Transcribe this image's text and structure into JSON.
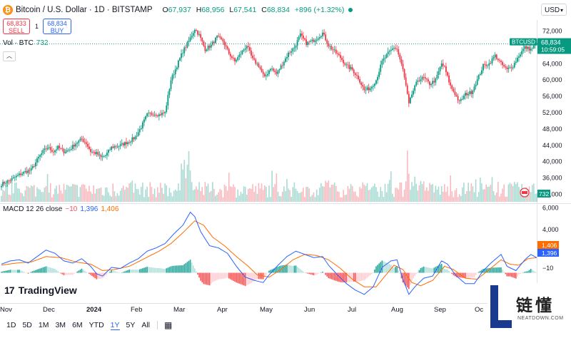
{
  "header": {
    "title": "Bitcoin / U.S. Dollar · 1D · BITSTAMP",
    "open_label": "O",
    "open": "67,937",
    "high_label": "H",
    "high": "68,956",
    "low_label": "L",
    "low": "67,541",
    "close_label": "C",
    "close": "68,834",
    "change": "+896 (+1.32%)"
  },
  "trade": {
    "sell_price": "68,833",
    "sell_label": "SELL",
    "spread": "1",
    "buy_price": "68,834",
    "buy_label": "BUY"
  },
  "volume_legend": {
    "label": "Vol · BTC",
    "value": "732"
  },
  "currency": "USD",
  "macd_legend": {
    "label": "MACD 12 26 close",
    "histogram": "−10",
    "macd": "1,396",
    "signal": "1,406"
  },
  "branding": {
    "tradingview": "TradingView",
    "logo_mark": "17"
  },
  "range_buttons": [
    "1D",
    "5D",
    "1M",
    "3M",
    "6M",
    "YTD",
    "1Y",
    "5Y",
    "All"
  ],
  "active_range": "1Y",
  "watermark": {
    "cn": "链懂",
    "en": "NEATDOWN.COM"
  },
  "colors": {
    "up": "#089981",
    "down": "#f23645",
    "macd": "#2962ff",
    "signal": "#ff6d00",
    "accent": "#2962ff"
  },
  "chart_data": {
    "type": "candlestick",
    "symbol": "BTCUSD",
    "current_price": "68,834",
    "countdown": "10:59:05",
    "price_axis": {
      "ylim": [
        30000,
        74000
      ],
      "ticks": [
        32000,
        36000,
        40000,
        44000,
        48000,
        52000,
        56000,
        60000,
        64000,
        68000,
        72000
      ]
    },
    "volume_last": "732",
    "macd_axis": {
      "ylim": [
        -2800,
        6300
      ],
      "ticks": [
        6000,
        4000
      ],
      "macd_last": "1,396",
      "signal_last": "1,406",
      "hist_last": "−10"
    },
    "x_labels": [
      "Nov",
      "Dec",
      "2024",
      "Feb",
      "Mar",
      "Apr",
      "May",
      "Jun",
      "Jul",
      "Aug",
      "Sep",
      "Oc"
    ],
    "price_path": [
      [
        0,
        34500
      ],
      [
        6,
        35500
      ],
      [
        12,
        36800
      ],
      [
        16,
        37500
      ],
      [
        20,
        38000
      ],
      [
        25,
        41000
      ],
      [
        28,
        42500
      ],
      [
        31,
        43500
      ],
      [
        35,
        42500
      ],
      [
        38,
        43500
      ],
      [
        42,
        42500
      ],
      [
        46,
        43000
      ],
      [
        50,
        44500
      ],
      [
        54,
        45500
      ],
      [
        57,
        44500
      ],
      [
        60,
        42500
      ],
      [
        64,
        42000
      ],
      [
        67,
        41000
      ],
      [
        70,
        41500
      ],
      [
        74,
        43500
      ],
      [
        80,
        44000
      ],
      [
        86,
        45000
      ],
      [
        90,
        46000
      ],
      [
        94,
        48500
      ],
      [
        98,
        51500
      ],
      [
        102,
        51800
      ],
      [
        106,
        51500
      ],
      [
        110,
        52000
      ],
      [
        114,
        60000
      ],
      [
        118,
        63500
      ],
      [
        122,
        67000
      ],
      [
        126,
        69500
      ],
      [
        130,
        72500
      ],
      [
        133,
        71000
      ],
      [
        137,
        67500
      ],
      [
        141,
        68500
      ],
      [
        145,
        70500
      ],
      [
        149,
        69500
      ],
      [
        153,
        66500
      ],
      [
        157,
        64500
      ],
      [
        161,
        66500
      ],
      [
        165,
        68500
      ],
      [
        169,
        65000
      ],
      [
        173,
        63500
      ],
      [
        177,
        60500
      ],
      [
        181,
        63000
      ],
      [
        185,
        61500
      ],
      [
        189,
        64000
      ],
      [
        193,
        66500
      ],
      [
        197,
        68000
      ],
      [
        201,
        71000
      ],
      [
        205,
        69000
      ],
      [
        209,
        69500
      ],
      [
        213,
        70500
      ],
      [
        216,
        71500
      ],
      [
        220,
        68500
      ],
      [
        224,
        67000
      ],
      [
        228,
        65500
      ],
      [
        232,
        63500
      ],
      [
        236,
        62500
      ],
      [
        240,
        60500
      ],
      [
        244,
        57500
      ],
      [
        248,
        58000
      ],
      [
        252,
        60000
      ],
      [
        256,
        64500
      ],
      [
        260,
        66500
      ],
      [
        264,
        68000
      ],
      [
        266,
        67500
      ],
      [
        268,
        65000
      ],
      [
        270,
        62500
      ],
      [
        272,
        58500
      ],
      [
        274,
        54000
      ],
      [
        276,
        56500
      ],
      [
        280,
        60000
      ],
      [
        284,
        60500
      ],
      [
        288,
        59000
      ],
      [
        292,
        60000
      ],
      [
        296,
        64000
      ],
      [
        298,
        63000
      ],
      [
        302,
        58500
      ],
      [
        306,
        56000
      ],
      [
        308,
        54500
      ],
      [
        312,
        56500
      ],
      [
        316,
        57000
      ],
      [
        320,
        60000
      ],
      [
        324,
        63500
      ],
      [
        328,
        64000
      ],
      [
        332,
        66000
      ],
      [
        336,
        64000
      ],
      [
        340,
        62500
      ],
      [
        344,
        63500
      ],
      [
        348,
        66000
      ],
      [
        352,
        68000
      ],
      [
        356,
        67500
      ],
      [
        360,
        68834
      ]
    ],
    "volume_peaks": {
      "Mar": 870,
      "Aug": 1500
    },
    "macd_path": [
      [
        0,
        800
      ],
      [
        6,
        1100
      ],
      [
        12,
        1200
      ],
      [
        18,
        900
      ],
      [
        24,
        1500
      ],
      [
        30,
        2100
      ],
      [
        36,
        1800
      ],
      [
        42,
        1100
      ],
      [
        48,
        900
      ],
      [
        54,
        1300
      ],
      [
        60,
        600
      ],
      [
        64,
        -100
      ],
      [
        68,
        -300
      ],
      [
        74,
        500
      ],
      [
        80,
        400
      ],
      [
        86,
        900
      ],
      [
        92,
        1300
      ],
      [
        98,
        2000
      ],
      [
        104,
        2300
      ],
      [
        110,
        2700
      ],
      [
        116,
        3600
      ],
      [
        122,
        4400
      ],
      [
        127,
        5600
      ],
      [
        130,
        5200
      ],
      [
        134,
        3800
      ],
      [
        140,
        2500
      ],
      [
        146,
        2300
      ],
      [
        152,
        1800
      ],
      [
        158,
        600
      ],
      [
        164,
        -400
      ],
      [
        170,
        -700
      ],
      [
        176,
        -900
      ],
      [
        180,
        -200
      ],
      [
        186,
        700
      ],
      [
        192,
        1500
      ],
      [
        198,
        2000
      ],
      [
        204,
        1700
      ],
      [
        210,
        1400
      ],
      [
        216,
        1500
      ],
      [
        220,
        700
      ],
      [
        226,
        -200
      ],
      [
        232,
        -1000
      ],
      [
        238,
        -1600
      ],
      [
        244,
        -2000
      ],
      [
        250,
        -1300
      ],
      [
        256,
        500
      ],
      [
        262,
        1100
      ],
      [
        266,
        1200
      ],
      [
        270,
        -600
      ],
      [
        274,
        -2000
      ],
      [
        278,
        -1300
      ],
      [
        284,
        -500
      ],
      [
        290,
        -300
      ],
      [
        296,
        1100
      ],
      [
        300,
        800
      ],
      [
        306,
        -300
      ],
      [
        312,
        -1000
      ],
      [
        318,
        -1000
      ],
      [
        324,
        200
      ],
      [
        330,
        1000
      ],
      [
        336,
        1700
      ],
      [
        340,
        600
      ],
      [
        346,
        200
      ],
      [
        352,
        1200
      ],
      [
        356,
        1700
      ],
      [
        360,
        1396
      ]
    ],
    "signal_path": [
      [
        0,
        700
      ],
      [
        10,
        900
      ],
      [
        20,
        1000
      ],
      [
        30,
        1500
      ],
      [
        40,
        1400
      ],
      [
        50,
        1000
      ],
      [
        60,
        800
      ],
      [
        68,
        200
      ],
      [
        76,
        300
      ],
      [
        86,
        600
      ],
      [
        96,
        1300
      ],
      [
        106,
        2000
      ],
      [
        114,
        2700
      ],
      [
        122,
        3700
      ],
      [
        130,
        4800
      ],
      [
        136,
        4400
      ],
      [
        142,
        3300
      ],
      [
        150,
        2500
      ],
      [
        158,
        1500
      ],
      [
        166,
        600
      ],
      [
        172,
        -200
      ],
      [
        180,
        -400
      ],
      [
        188,
        300
      ],
      [
        196,
        1200
      ],
      [
        204,
        1700
      ],
      [
        212,
        1600
      ],
      [
        220,
        1200
      ],
      [
        228,
        400
      ],
      [
        236,
        -600
      ],
      [
        244,
        -1300
      ],
      [
        252,
        -1300
      ],
      [
        258,
        -300
      ],
      [
        264,
        700
      ],
      [
        270,
        300
      ],
      [
        276,
        -900
      ],
      [
        282,
        -1200
      ],
      [
        290,
        -700
      ],
      [
        298,
        600
      ],
      [
        304,
        300
      ],
      [
        312,
        -500
      ],
      [
        320,
        -600
      ],
      [
        328,
        300
      ],
      [
        336,
        1200
      ],
      [
        342,
        800
      ],
      [
        348,
        700
      ],
      [
        354,
        1300
      ],
      [
        360,
        1406
      ]
    ]
  }
}
